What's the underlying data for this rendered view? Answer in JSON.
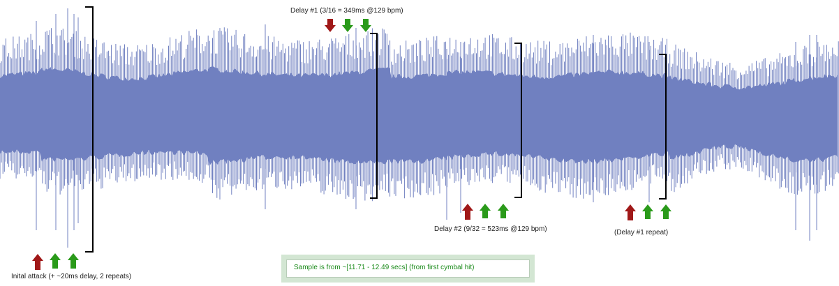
{
  "labels": {
    "delay1": "Delay #1 (3/16  =  349ms @129 bpm)",
    "delay2": "Delay #2 (9/32  =  523ms @129 bpm)",
    "delay1_repeat": "(Delay #1 repeat)",
    "initial_attack": "Inital attack (+ ~20ms delay, 2 repeats)"
  },
  "note": {
    "text": "Sample is from ~[11.71 - 12.49 secs] (from first cymbal hit)"
  },
  "colors": {
    "waveform": "#7080c0",
    "primary_arrow": "#a01818",
    "delay_arrow": "#2a9a1a",
    "bracket": "#000000",
    "note_text": "#1a8a1a",
    "note_frame": "#d3e6d3"
  },
  "arrow_groups": [
    {
      "name": "initial-attack",
      "arrows": [
        "primary",
        "delay",
        "delay"
      ]
    },
    {
      "name": "delay-1",
      "arrows": [
        "primary",
        "delay",
        "delay"
      ]
    },
    {
      "name": "delay-2",
      "arrows": [
        "primary",
        "delay",
        "delay"
      ]
    },
    {
      "name": "delay-1-repeat",
      "arrows": [
        "primary",
        "delay",
        "delay"
      ]
    }
  ]
}
